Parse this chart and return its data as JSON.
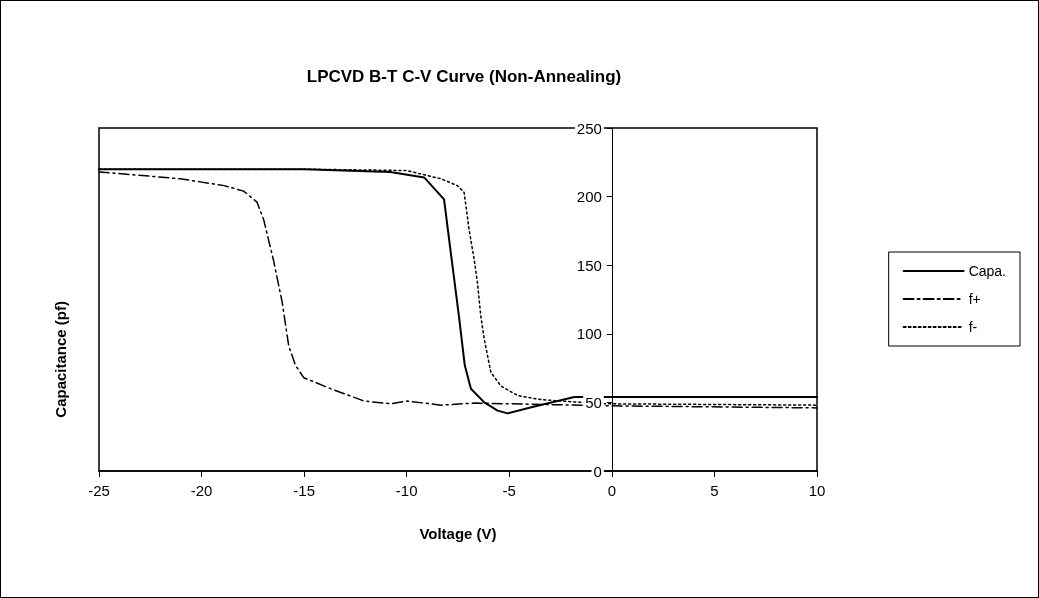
{
  "chart_data": {
    "type": "line",
    "title": "LPCVD B-T C-V Curve (Non-Annealing)",
    "xlabel": "Voltage (V)",
    "ylabel": "Capacitance (pf)",
    "xlim": [
      -25,
      10
    ],
    "xticks": [
      -25,
      -20,
      -15,
      -10,
      -5,
      0,
      5,
      10
    ],
    "ylim": [
      0,
      250
    ],
    "yticks": [
      0,
      50,
      100,
      150,
      200,
      250
    ],
    "grid": false,
    "legend": "right",
    "marker": "none",
    "series": [
      {
        "name": "Capa.",
        "color": "#000000",
        "line_style": "solid",
        "x": [
          -25,
          -15,
          -10.8,
          -9.15,
          -8.18,
          -7.85,
          -7.44,
          -7.17,
          -6.87,
          -6.22,
          -5.57,
          -5.08,
          -3.78,
          -2.64,
          -1.83,
          0,
          10
        ],
        "values": [
          220,
          220,
          218,
          214,
          198,
          159,
          111,
          77,
          60,
          50,
          44,
          42,
          47,
          51,
          54,
          54,
          54
        ]
      },
      {
        "name": "f+",
        "color": "#000000",
        "line_style": "dashed",
        "x": [
          -25,
          -21.04,
          -18.9,
          -17.95,
          -17.3,
          -16.97,
          -16.5,
          -16.07,
          -15.75,
          -15.42,
          -15.02,
          -13.71,
          -12.08,
          -10.78,
          -9.97,
          -8.34,
          -6.71,
          0,
          10
        ],
        "values": [
          218,
          213,
          208,
          204,
          196,
          183,
          154,
          123,
          91,
          77,
          68,
          60,
          51,
          49,
          51,
          48,
          49.5,
          47.5,
          46
        ]
      },
      {
        "name": "f-",
        "color": "#000000",
        "line_style": "dotted",
        "x": [
          -25,
          -15,
          -10,
          -8.34,
          -7.53,
          -7.2,
          -6.96,
          -6.71,
          -6.55,
          -6.39,
          -6.22,
          -5.9,
          -5.41,
          -4.59,
          -3.45,
          -0.5,
          10
        ],
        "values": [
          220,
          220,
          219,
          213,
          208,
          203,
          176,
          154,
          137,
          113,
          96,
          72,
          62,
          55,
          52,
          49,
          48
        ]
      }
    ]
  }
}
